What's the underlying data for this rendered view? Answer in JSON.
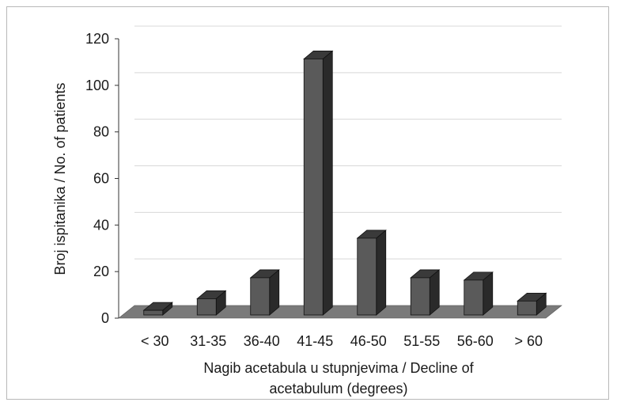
{
  "chart_data": {
    "type": "bar",
    "style": "3d-column",
    "title": "",
    "categories": [
      "< 30",
      "31-35",
      "36-40",
      "41-45",
      "46-50",
      "51-55",
      "56-60",
      "> 60"
    ],
    "values": [
      2,
      7,
      16,
      110,
      33,
      16,
      15,
      6
    ],
    "ylabel": "Broj ispitanika / No. of patients",
    "xlabel_lines": [
      "Nagib acetabula u stupnjevima / Decline of",
      "acetabulum (degrees)"
    ],
    "ylim": [
      0,
      120
    ],
    "yticks": [
      0,
      20,
      40,
      60,
      80,
      100,
      120
    ],
    "grid": true,
    "legend": "none",
    "colors": {
      "bar_front": "#5a5a5a",
      "bar_side": "#2a2a2a",
      "bar_top": "#3a3a3a",
      "floor": "#7a7a7a",
      "grid": "#d8d8d8",
      "axis": "#333333"
    }
  }
}
